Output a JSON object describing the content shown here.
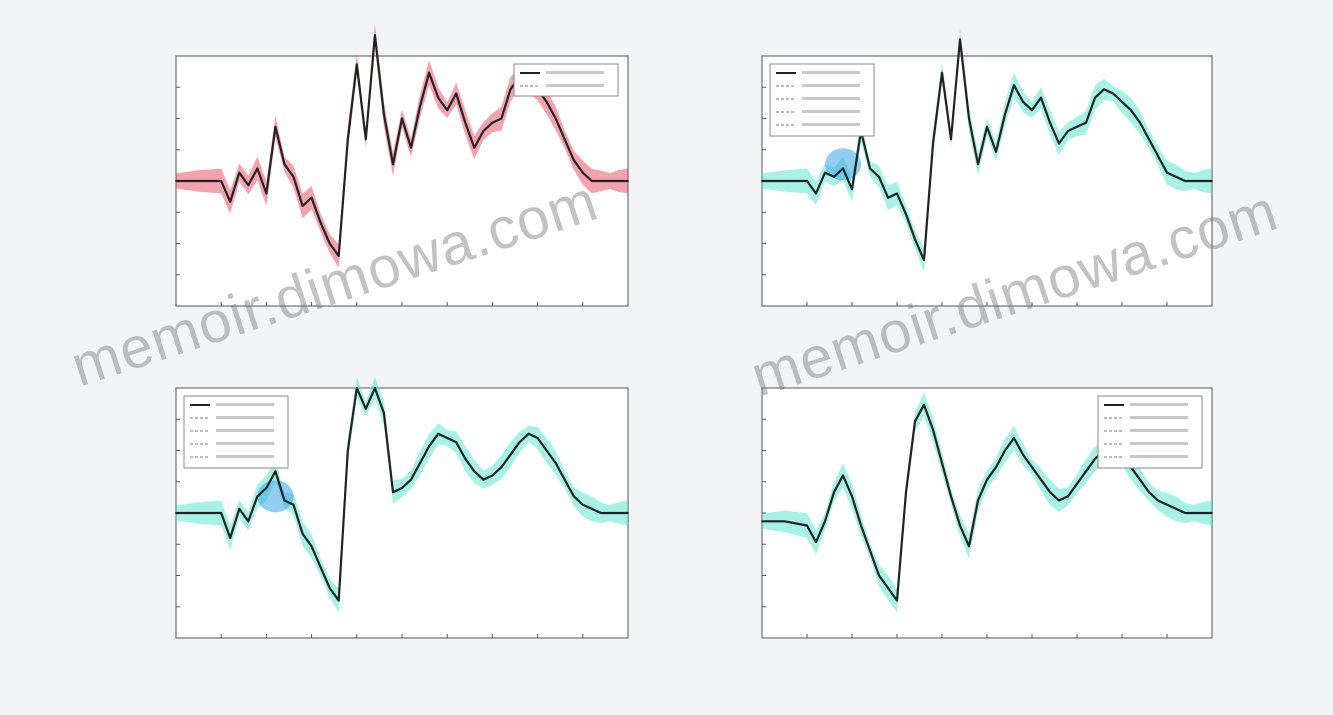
{
  "watermark": "memoir.dimowa.com",
  "colors": {
    "background": "#f3f4f6",
    "axes": "#555555",
    "grid": "#d9d9d9",
    "black_line": "#222222",
    "red_band": "#e8304e",
    "cyan_band": "#3fe0c8",
    "blue_band": "#3aa6e8"
  },
  "chart_data": [
    {
      "type": "line",
      "panel": "top-left",
      "title": "",
      "xlabel": "",
      "ylabel": "",
      "xlim": [
        0,
        10
      ],
      "ylim": [
        -3,
        3
      ],
      "grid": false,
      "legend": "top-right",
      "band_color": "red_band",
      "x": [
        0,
        0.5,
        1,
        1.2,
        1.4,
        1.6,
        1.8,
        2,
        2.2,
        2.4,
        2.6,
        2.8,
        3,
        3.2,
        3.4,
        3.6,
        3.8,
        4,
        4.2,
        4.4,
        4.6,
        4.8,
        5,
        5.2,
        5.4,
        5.6,
        5.8,
        6,
        6.2,
        6.4,
        6.6,
        6.8,
        7,
        7.2,
        7.4,
        7.6,
        7.8,
        8,
        8.2,
        8.4,
        8.6,
        8.8,
        9,
        9.2,
        9.4,
        9.6,
        9.8,
        10
      ],
      "series": [
        {
          "values": [
            0,
            0,
            0,
            -0.5,
            0.2,
            -0.1,
            0.3,
            -0.3,
            1.3,
            0.4,
            0.1,
            -0.6,
            -0.4,
            -1.0,
            -1.5,
            -1.8,
            1.0,
            2.8,
            1.0,
            3.5,
            1.6,
            0.4,
            1.5,
            0.8,
            1.8,
            2.6,
            2.0,
            1.7,
            2.1,
            1.4,
            0.8,
            1.2,
            1.4,
            1.5,
            2.2,
            2.5,
            2.3,
            2.2,
            1.9,
            1.5,
            1.0,
            0.5,
            0.2,
            0,
            0,
            0,
            0,
            0
          ]
        }
      ]
    },
    {
      "type": "line",
      "panel": "top-right",
      "title": "",
      "xlabel": "",
      "ylabel": "",
      "xlim": [
        0,
        10
      ],
      "ylim": [
        -3,
        3
      ],
      "grid": false,
      "legend": "top-left",
      "band_color": "cyan_band",
      "highlight_color": "blue_band",
      "highlight_x": [
        1.4,
        2.2
      ],
      "x": [
        0,
        0.5,
        1,
        1.2,
        1.4,
        1.6,
        1.8,
        2,
        2.2,
        2.4,
        2.6,
        2.8,
        3,
        3.2,
        3.4,
        3.6,
        3.8,
        4,
        4.2,
        4.4,
        4.6,
        4.8,
        5,
        5.2,
        5.4,
        5.6,
        5.8,
        6,
        6.2,
        6.4,
        6.6,
        6.8,
        7,
        7.2,
        7.4,
        7.6,
        7.8,
        8,
        8.2,
        8.4,
        8.6,
        8.8,
        9,
        9.2,
        9.4,
        9.6,
        9.8,
        10
      ],
      "series": [
        {
          "values": [
            0,
            0,
            0,
            -0.3,
            0.2,
            0.1,
            0.3,
            -0.2,
            1.2,
            0.3,
            0.1,
            -0.4,
            -0.3,
            -0.8,
            -1.4,
            -1.9,
            0.9,
            2.6,
            1.0,
            3.4,
            1.5,
            0.4,
            1.3,
            0.7,
            1.6,
            2.3,
            1.9,
            1.7,
            2.0,
            1.4,
            0.9,
            1.2,
            1.3,
            1.4,
            2.0,
            2.2,
            2.1,
            1.9,
            1.7,
            1.4,
            1.0,
            0.6,
            0.2,
            0.1,
            0,
            0,
            0,
            0
          ]
        }
      ]
    },
    {
      "type": "line",
      "panel": "bottom-left",
      "title": "",
      "xlabel": "",
      "ylabel": "",
      "xlim": [
        0,
        10
      ],
      "ylim": [
        -3,
        3
      ],
      "grid": false,
      "legend": "top-left",
      "band_color": "cyan_band",
      "highlight_color": "blue_band",
      "highlight_x": [
        1.8,
        2.6
      ],
      "x": [
        0,
        0.5,
        1,
        1.2,
        1.4,
        1.6,
        1.8,
        2,
        2.2,
        2.4,
        2.6,
        2.8,
        3,
        3.2,
        3.4,
        3.6,
        3.8,
        4,
        4.2,
        4.4,
        4.6,
        4.8,
        5,
        5.2,
        5.4,
        5.6,
        5.8,
        6,
        6.2,
        6.4,
        6.6,
        6.8,
        7,
        7.2,
        7.4,
        7.6,
        7.8,
        8,
        8.2,
        8.4,
        8.6,
        8.8,
        9,
        9.2,
        9.4,
        9.6,
        9.8,
        10
      ],
      "series": [
        {
          "values": [
            0,
            0,
            0,
            -0.6,
            0.1,
            -0.2,
            0.4,
            0.6,
            1.0,
            0.3,
            0.2,
            -0.5,
            -0.8,
            -1.3,
            -1.8,
            -2.1,
            1.5,
            3.0,
            2.5,
            3.0,
            2.4,
            0.5,
            0.6,
            0.8,
            1.2,
            1.6,
            1.9,
            1.8,
            1.7,
            1.3,
            1.0,
            0.8,
            0.9,
            1.1,
            1.4,
            1.7,
            1.9,
            1.8,
            1.5,
            1.2,
            0.8,
            0.4,
            0.2,
            0.1,
            0,
            0,
            0,
            0
          ]
        }
      ]
    },
    {
      "type": "line",
      "panel": "bottom-right",
      "title": "",
      "xlabel": "",
      "ylabel": "",
      "xlim": [
        0,
        10
      ],
      "ylim": [
        -3,
        3
      ],
      "grid": false,
      "legend": "top-right",
      "band_color": "cyan_band",
      "x": [
        0,
        0.5,
        1,
        1.2,
        1.4,
        1.6,
        1.8,
        2,
        2.2,
        2.4,
        2.6,
        2.8,
        3,
        3.2,
        3.4,
        3.6,
        3.8,
        4,
        4.2,
        4.4,
        4.6,
        4.8,
        5,
        5.2,
        5.4,
        5.6,
        5.8,
        6,
        6.2,
        6.4,
        6.6,
        6.8,
        7,
        7.2,
        7.4,
        7.6,
        7.8,
        8,
        8.2,
        8.4,
        8.6,
        8.8,
        9,
        9.2,
        9.4,
        9.6,
        9.8,
        10
      ],
      "series": [
        {
          "values": [
            -0.2,
            -0.2,
            -0.3,
            -0.7,
            -0.2,
            0.5,
            0.9,
            0.4,
            -0.3,
            -0.9,
            -1.5,
            -1.8,
            -2.1,
            0.5,
            2.2,
            2.6,
            2.0,
            1.2,
            0.4,
            -0.3,
            -0.8,
            0.3,
            0.8,
            1.1,
            1.5,
            1.8,
            1.4,
            1.1,
            0.8,
            0.5,
            0.3,
            0.4,
            0.7,
            1.0,
            1.3,
            1.5,
            1.6,
            1.4,
            1.1,
            0.8,
            0.5,
            0.3,
            0.2,
            0.1,
            0,
            0,
            0,
            0
          ]
        }
      ]
    }
  ]
}
